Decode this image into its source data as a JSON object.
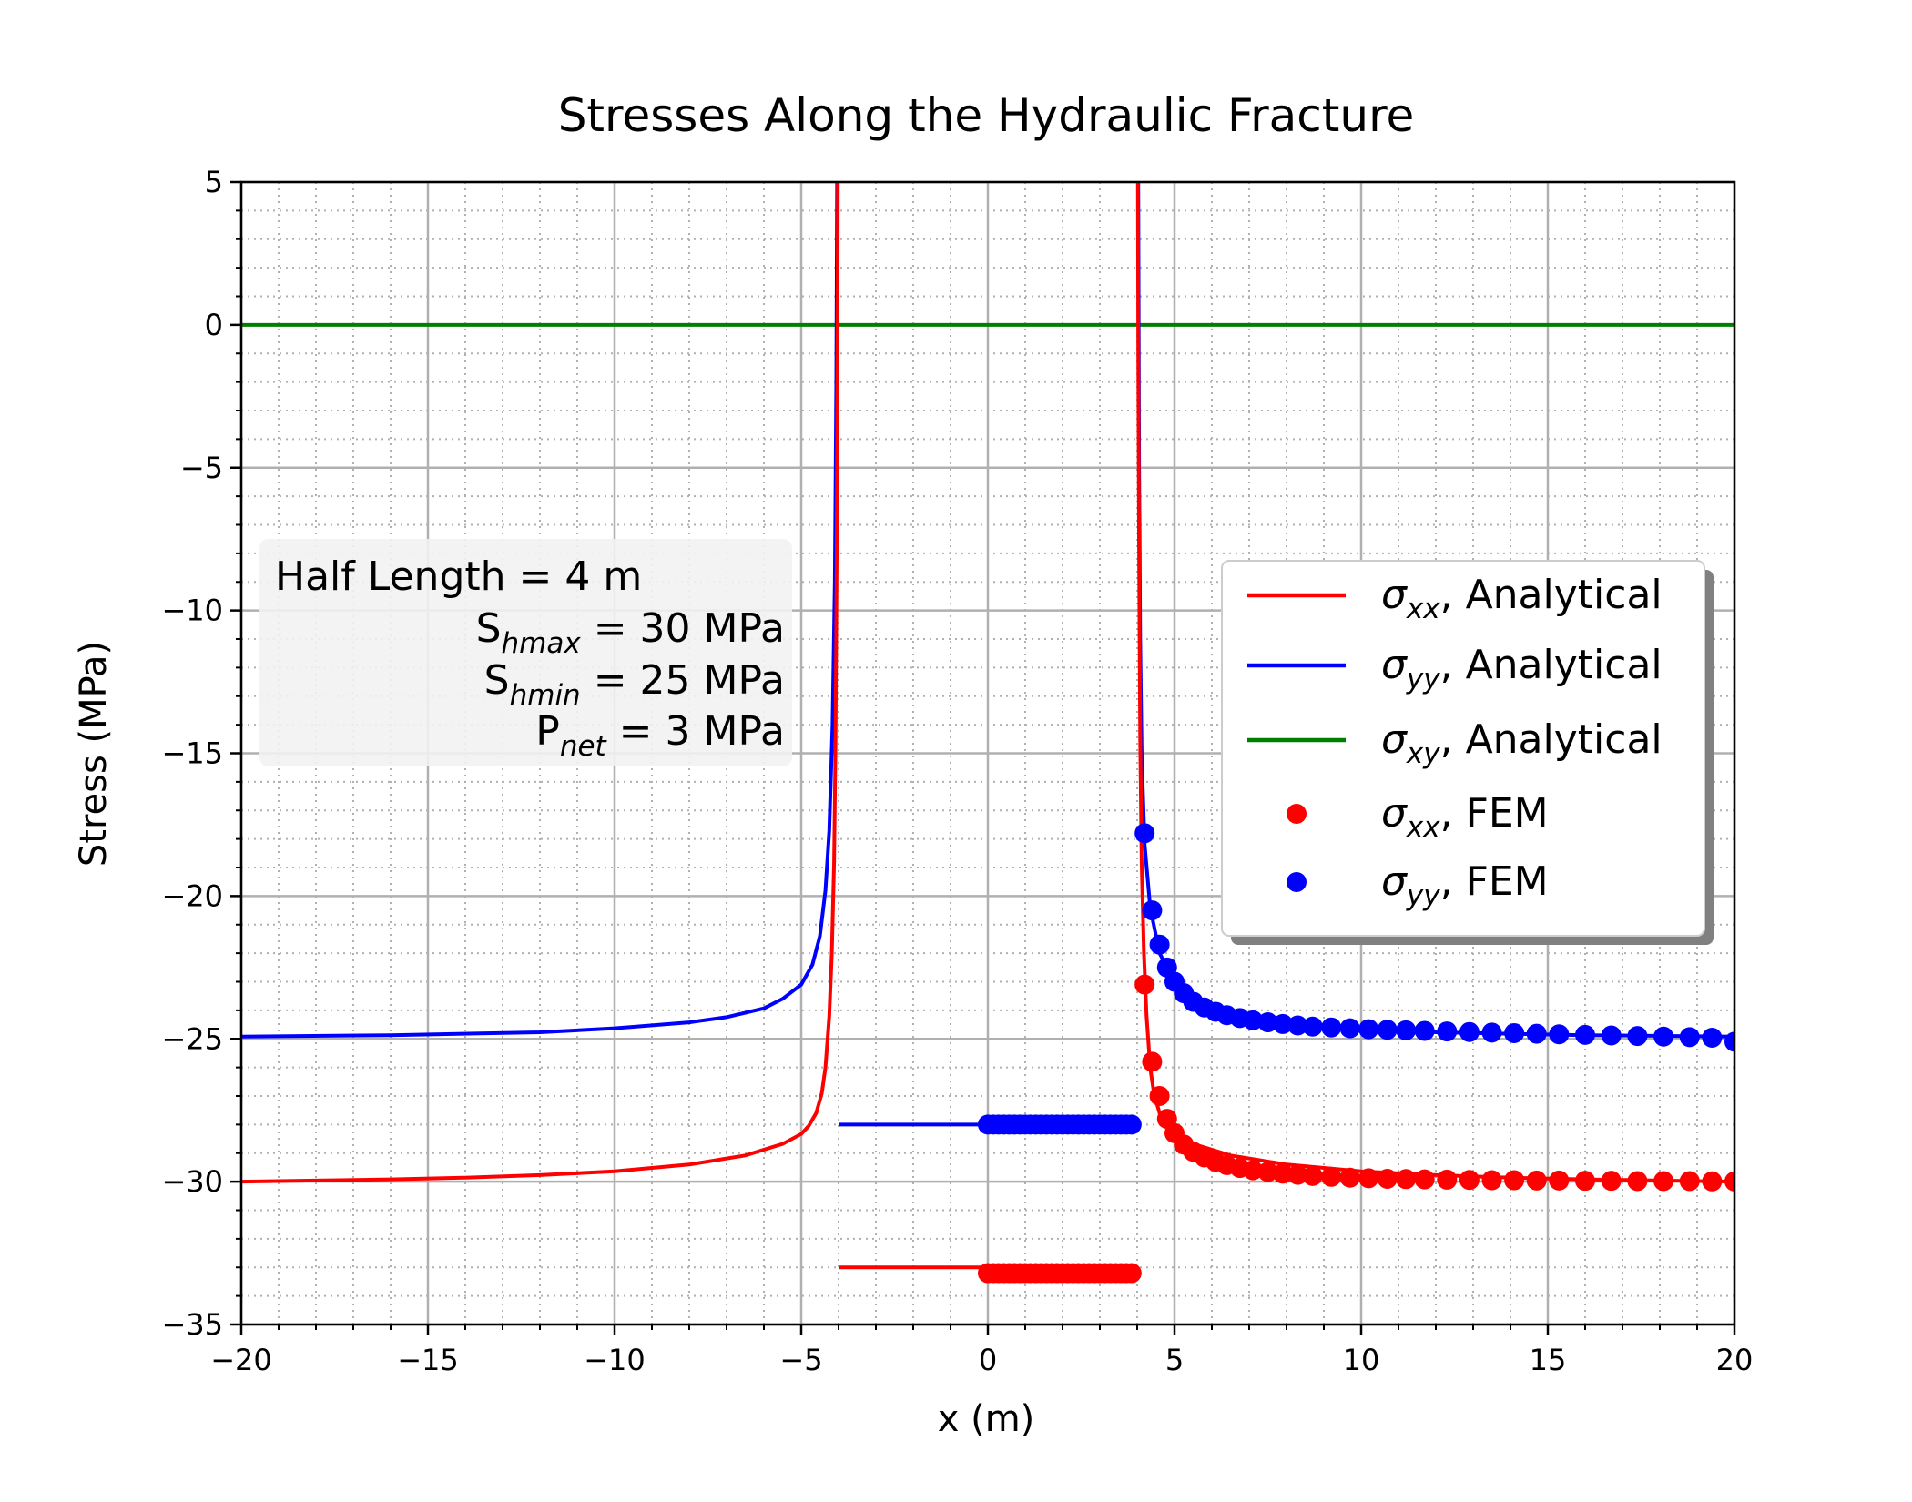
{
  "chart_data": {
    "type": "line",
    "title": "Stresses Along the Hydraulic Fracture",
    "xlabel": "x (m)",
    "ylabel": "Stress (MPa)",
    "xlim": [
      -20,
      20
    ],
    "ylim": [
      -35,
      5
    ],
    "xticks": [
      -20,
      -15,
      -10,
      -5,
      0,
      5,
      10,
      15,
      20
    ],
    "yticks": [
      5,
      0,
      -5,
      -10,
      -15,
      -20,
      -25,
      -30,
      -35
    ],
    "xtick_labels": [
      "−20",
      "−15",
      "−10",
      "−5",
      "0",
      "5",
      "10",
      "15",
      "20"
    ],
    "ytick_labels": [
      "5",
      "0",
      "−5",
      "−10",
      "−15",
      "−20",
      "−25",
      "−30",
      "−35"
    ],
    "grid": {
      "major": true,
      "minor": true
    },
    "legend_position": "center-right",
    "annotation": {
      "lines": [
        {
          "label": "Half Length",
          "sub": "",
          "value": " =  4 m"
        },
        {
          "label": "S",
          "sub": "hmax",
          "value": " = 30 MPa"
        },
        {
          "label": "S",
          "sub": "hmin",
          "value": " = 25 MPa"
        },
        {
          "label": "P",
          "sub": "net",
          "value": " =   3 MPa"
        }
      ]
    },
    "series": [
      {
        "name_main": "σ",
        "name_sub": "xx",
        "name_rest": ", Analytical",
        "style": "line",
        "color": "#ff0000",
        "points": [
          [
            -20,
            -30.0
          ],
          [
            -18,
            -29.96
          ],
          [
            -16,
            -29.92
          ],
          [
            -14,
            -29.86
          ],
          [
            -12,
            -29.77
          ],
          [
            -10,
            -29.64
          ],
          [
            -8,
            -29.4
          ],
          [
            -6.5,
            -29.08
          ],
          [
            -5.5,
            -28.68
          ],
          [
            -5,
            -28.33
          ],
          [
            -4.8,
            -28.05
          ],
          [
            -4.6,
            -27.6
          ],
          [
            -4.45,
            -26.9
          ],
          [
            -4.35,
            -26.0
          ],
          [
            -4.25,
            -24.2
          ],
          [
            -4.18,
            -22.0
          ],
          [
            -4.12,
            -18.8
          ],
          [
            -4.08,
            -14.5
          ],
          [
            -4.05,
            -8.0
          ],
          [
            -4.03,
            -1.0
          ],
          [
            -4.02,
            5.0
          ]
        ],
        "inner": {
          "x0": -4,
          "x1": 4,
          "y": -33
        }
      },
      {
        "name_main": "σ",
        "name_sub": "yy",
        "name_rest": ", Analytical",
        "style": "line",
        "color": "#0000ff",
        "points": [
          [
            -20,
            -24.92
          ],
          [
            -16,
            -24.87
          ],
          [
            -12,
            -24.77
          ],
          [
            -10,
            -24.63
          ],
          [
            -8,
            -24.42
          ],
          [
            -7,
            -24.24
          ],
          [
            -6,
            -23.93
          ],
          [
            -5.5,
            -23.6
          ],
          [
            -5,
            -23.1
          ],
          [
            -4.7,
            -22.4
          ],
          [
            -4.5,
            -21.4
          ],
          [
            -4.35,
            -19.8
          ],
          [
            -4.25,
            -17.7
          ],
          [
            -4.16,
            -14.0
          ],
          [
            -4.1,
            -9.0
          ],
          [
            -4.06,
            -2.0
          ],
          [
            -4.04,
            5.0
          ]
        ],
        "inner": {
          "x0": -4,
          "x1": 4,
          "y": -28
        },
        "right_points": [
          [
            4.03,
            5.0
          ],
          [
            4.05,
            -5.0
          ],
          [
            4.08,
            -11.0
          ],
          [
            4.12,
            -15.0
          ],
          [
            4.2,
            -18.2
          ],
          [
            4.35,
            -20.4
          ],
          [
            4.6,
            -22.0
          ],
          [
            5.0,
            -23.0
          ],
          [
            5.5,
            -23.6
          ],
          [
            6.5,
            -24.1
          ],
          [
            8,
            -24.42
          ],
          [
            10,
            -24.63
          ],
          [
            12,
            -24.77
          ],
          [
            16,
            -24.87
          ],
          [
            20,
            -24.92
          ]
        ]
      },
      {
        "name_main": "σ",
        "name_sub": "xy",
        "name_rest": ", Analytical",
        "style": "line",
        "color": "#008000",
        "points": [
          [
            -20,
            0
          ],
          [
            20,
            0
          ]
        ]
      },
      {
        "name_main": "σ",
        "name_sub": "xx",
        "name_rest": ", FEM",
        "style": "marker",
        "color": "#ff0000",
        "inner_range": {
          "x0": 0,
          "x1": 3.85,
          "y": -33.2,
          "count": 28
        },
        "points": [
          [
            4.2,
            -23.1
          ],
          [
            4.4,
            -25.8
          ],
          [
            4.6,
            -27.0
          ],
          [
            4.8,
            -27.8
          ],
          [
            5.0,
            -28.3
          ],
          [
            5.25,
            -28.7
          ],
          [
            5.5,
            -28.95
          ],
          [
            5.8,
            -29.15
          ],
          [
            6.1,
            -29.3
          ],
          [
            6.4,
            -29.42
          ],
          [
            6.75,
            -29.52
          ],
          [
            7.1,
            -29.6
          ],
          [
            7.5,
            -29.66
          ],
          [
            7.9,
            -29.72
          ],
          [
            8.3,
            -29.76
          ],
          [
            8.7,
            -29.8
          ],
          [
            9.2,
            -29.83
          ],
          [
            9.7,
            -29.86
          ],
          [
            10.2,
            -29.88
          ],
          [
            10.7,
            -29.9
          ],
          [
            11.2,
            -29.91
          ],
          [
            11.7,
            -29.92
          ],
          [
            12.3,
            -29.93
          ],
          [
            12.9,
            -29.94
          ],
          [
            13.5,
            -29.95
          ],
          [
            14.1,
            -29.95
          ],
          [
            14.7,
            -29.96
          ],
          [
            15.3,
            -29.96
          ],
          [
            16.0,
            -29.97
          ],
          [
            16.7,
            -29.97
          ],
          [
            17.4,
            -29.98
          ],
          [
            18.1,
            -29.98
          ],
          [
            18.8,
            -29.98
          ],
          [
            19.4,
            -29.99
          ],
          [
            20.0,
            -29.99
          ]
        ]
      },
      {
        "name_main": "σ",
        "name_sub": "yy",
        "name_rest": ", FEM",
        "style": "marker",
        "color": "#0000ff",
        "inner_range": {
          "x0": 0,
          "x1": 3.85,
          "y": -28.0,
          "count": 28
        },
        "points": [
          [
            4.2,
            -17.8
          ],
          [
            4.4,
            -20.5
          ],
          [
            4.6,
            -21.7
          ],
          [
            4.8,
            -22.5
          ],
          [
            5.0,
            -23.0
          ],
          [
            5.25,
            -23.4
          ],
          [
            5.5,
            -23.7
          ],
          [
            5.8,
            -23.9
          ],
          [
            6.1,
            -24.05
          ],
          [
            6.4,
            -24.17
          ],
          [
            6.75,
            -24.27
          ],
          [
            7.1,
            -24.35
          ],
          [
            7.5,
            -24.42
          ],
          [
            7.9,
            -24.48
          ],
          [
            8.3,
            -24.53
          ],
          [
            8.7,
            -24.57
          ],
          [
            9.2,
            -24.6
          ],
          [
            9.7,
            -24.63
          ],
          [
            10.2,
            -24.66
          ],
          [
            10.7,
            -24.68
          ],
          [
            11.2,
            -24.7
          ],
          [
            11.7,
            -24.72
          ],
          [
            12.3,
            -24.74
          ],
          [
            12.9,
            -24.76
          ],
          [
            13.5,
            -24.78
          ],
          [
            14.1,
            -24.8
          ],
          [
            14.7,
            -24.82
          ],
          [
            15.3,
            -24.84
          ],
          [
            16.0,
            -24.86
          ],
          [
            16.7,
            -24.88
          ],
          [
            17.4,
            -24.9
          ],
          [
            18.1,
            -24.92
          ],
          [
            18.8,
            -24.94
          ],
          [
            19.4,
            -24.96
          ],
          [
            20.0,
            -25.1
          ]
        ]
      }
    ]
  }
}
